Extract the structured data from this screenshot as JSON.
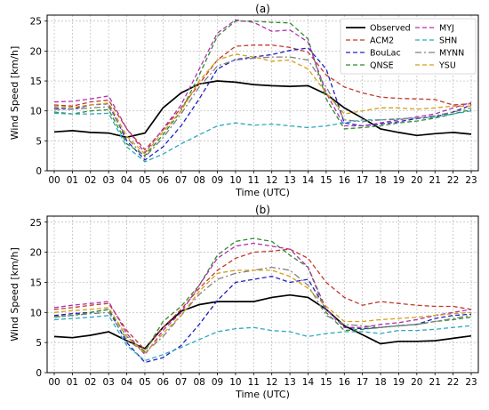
{
  "chart_data": [
    {
      "type": "line",
      "title": "(a)",
      "xlabel": "Time (UTC)",
      "ylabel": "Wind Speed [km/h]",
      "ylim": [
        0,
        26
      ],
      "yticks": [
        0,
        5,
        10,
        15,
        20,
        25
      ],
      "grid": true,
      "legend": "top-right",
      "categories": [
        "00",
        "01",
        "02",
        "03",
        "04",
        "05",
        "06",
        "07",
        "08",
        "09",
        "10",
        "11",
        "12",
        "13",
        "14",
        "15",
        "16",
        "17",
        "18",
        "19",
        "20",
        "21",
        "22",
        "23"
      ],
      "series": [
        {
          "name": "Observed",
          "color": "#000000",
          "dash": "solid",
          "values": [
            6.5,
            6.7,
            6.4,
            6.3,
            5.6,
            6.3,
            10.5,
            13.0,
            14.5,
            15.0,
            14.8,
            14.4,
            14.2,
            14.1,
            14.2,
            12.8,
            10.5,
            8.8,
            7.0,
            6.4,
            5.9,
            6.2,
            6.4,
            6.1
          ]
        },
        {
          "name": "ACM2",
          "color": "#c0392b",
          "dash": "dashed",
          "values": [
            11.0,
            10.8,
            11.5,
            11.8,
            7.0,
            3.5,
            6.8,
            10.5,
            14.5,
            18.5,
            20.8,
            21.0,
            21.0,
            20.6,
            19.8,
            16.0,
            14.0,
            13.0,
            12.3,
            12.1,
            12.0,
            11.9,
            11.0,
            11.2
          ]
        },
        {
          "name": "BouLac",
          "color": "#2020c0",
          "dash": "dashed",
          "values": [
            10.5,
            10.3,
            11.0,
            11.2,
            5.0,
            1.8,
            4.0,
            7.5,
            12.0,
            17.0,
            18.6,
            19.0,
            19.4,
            20.1,
            20.5,
            17.0,
            8.0,
            7.5,
            7.8,
            8.2,
            8.7,
            9.0,
            9.8,
            11.0
          ]
        },
        {
          "name": "QNSE",
          "color": "#2e8b2e",
          "dash": "dashed",
          "values": [
            9.8,
            9.5,
            10.0,
            10.2,
            4.5,
            2.5,
            6.0,
            10.0,
            16.0,
            22.5,
            25.0,
            25.0,
            24.8,
            24.7,
            22.0,
            12.0,
            7.0,
            7.2,
            7.5,
            8.0,
            8.3,
            8.8,
            9.5,
            10.2
          ]
        },
        {
          "name": "MYJ",
          "color": "#b030b0",
          "dash": "dashed",
          "values": [
            11.5,
            11.6,
            12.0,
            12.5,
            7.0,
            3.0,
            7.0,
            11.0,
            17.0,
            23.0,
            25.2,
            24.8,
            23.3,
            23.5,
            21.5,
            13.0,
            7.5,
            7.5,
            8.0,
            8.5,
            9.0,
            9.5,
            10.5,
            11.4
          ]
        },
        {
          "name": "SHN",
          "color": "#2ca8c0",
          "dash": "dashed",
          "values": [
            9.6,
            9.5,
            9.5,
            9.6,
            4.0,
            1.5,
            2.8,
            4.5,
            6.0,
            7.5,
            8.0,
            7.6,
            7.8,
            7.5,
            7.2,
            7.5,
            8.0,
            8.5,
            8.5,
            8.7,
            8.8,
            9.0,
            9.5,
            10.0
          ]
        },
        {
          "name": "MYNN",
          "color": "#808080",
          "dash": "dashdot",
          "values": [
            10.2,
            10.3,
            10.5,
            10.7,
            5.5,
            2.3,
            5.5,
            9.5,
            14.0,
            17.5,
            18.5,
            18.8,
            19.0,
            19.0,
            18.5,
            14.0,
            8.5,
            8.2,
            8.5,
            8.6,
            8.8,
            9.2,
            9.8,
            10.5
          ]
        },
        {
          "name": "YSU",
          "color": "#d4a017",
          "dash": "dashed",
          "values": [
            10.8,
            10.6,
            11.0,
            11.3,
            5.8,
            2.8,
            6.5,
            10.0,
            15.0,
            18.5,
            19.5,
            19.0,
            18.3,
            18.5,
            17.0,
            13.0,
            9.5,
            10.0,
            10.5,
            10.5,
            10.3,
            10.5,
            10.8,
            10.8
          ]
        }
      ]
    },
    {
      "type": "line",
      "title": "(b)",
      "xlabel": "Time (UTC)",
      "ylabel": "Wind Speed [km/h]",
      "ylim": [
        0,
        26
      ],
      "yticks": [
        0,
        5,
        10,
        15,
        20,
        25
      ],
      "grid": true,
      "legend": "none",
      "categories": [
        "00",
        "01",
        "02",
        "03",
        "04",
        "05",
        "06",
        "07",
        "08",
        "09",
        "10",
        "11",
        "12",
        "13",
        "14",
        "15",
        "16",
        "17",
        "18",
        "19",
        "20",
        "21",
        "22",
        "23"
      ],
      "series": [
        {
          "name": "Observed",
          "color": "#000000",
          "dash": "solid",
          "values": [
            6.0,
            5.8,
            6.2,
            6.8,
            5.3,
            4.0,
            7.5,
            10.2,
            11.3,
            11.8,
            11.8,
            11.8,
            12.5,
            12.9,
            12.5,
            10.5,
            7.8,
            6.3,
            4.8,
            5.2,
            5.2,
            5.3,
            5.7,
            6.1
          ]
        },
        {
          "name": "ACM2",
          "color": "#c0392b",
          "dash": "dashed",
          "values": [
            10.5,
            10.8,
            11.2,
            11.5,
            7.0,
            3.8,
            7.5,
            10.5,
            14.0,
            17.0,
            19.0,
            20.0,
            20.2,
            20.5,
            19.0,
            15.0,
            12.5,
            11.2,
            11.8,
            11.5,
            11.2,
            11.0,
            11.0,
            10.5
          ]
        },
        {
          "name": "BouLac",
          "color": "#2020c0",
          "dash": "dashed",
          "values": [
            9.5,
            9.8,
            10.0,
            10.5,
            5.0,
            1.7,
            2.5,
            4.5,
            8.0,
            12.0,
            15.0,
            15.5,
            16.0,
            15.0,
            15.5,
            10.5,
            7.5,
            7.3,
            7.5,
            7.8,
            8.0,
            9.0,
            9.5,
            9.7
          ]
        },
        {
          "name": "QNSE",
          "color": "#2e8b2e",
          "dash": "dashed",
          "values": [
            9.3,
            9.5,
            10.0,
            10.5,
            6.0,
            3.5,
            8.5,
            11.0,
            14.5,
            19.5,
            21.8,
            22.3,
            21.8,
            19.5,
            17.5,
            10.0,
            7.0,
            7.2,
            7.5,
            7.8,
            8.0,
            8.5,
            8.8,
            9.2
          ]
        },
        {
          "name": "MYJ",
          "color": "#b030b0",
          "dash": "dashed",
          "values": [
            10.8,
            11.2,
            11.5,
            11.8,
            6.5,
            3.0,
            7.0,
            10.0,
            14.5,
            19.0,
            21.0,
            21.5,
            21.0,
            20.5,
            17.5,
            10.5,
            7.5,
            7.5,
            8.0,
            8.3,
            8.8,
            9.5,
            10.0,
            10.5
          ]
        },
        {
          "name": "SHN",
          "color": "#2ca8c0",
          "dash": "dashed",
          "values": [
            8.8,
            9.0,
            9.2,
            9.5,
            4.5,
            2.0,
            3.0,
            4.2,
            5.5,
            6.8,
            7.3,
            7.5,
            7.0,
            6.8,
            6.0,
            6.5,
            6.8,
            6.8,
            6.5,
            7.0,
            7.0,
            7.2,
            7.5,
            7.8
          ]
        },
        {
          "name": "MYNN",
          "color": "#808080",
          "dash": "dashdot",
          "values": [
            9.2,
            9.5,
            9.8,
            10.0,
            5.5,
            3.3,
            6.0,
            9.5,
            13.0,
            15.5,
            16.5,
            17.0,
            17.5,
            17.0,
            14.5,
            9.5,
            8.0,
            7.8,
            7.5,
            7.8,
            8.0,
            8.5,
            9.0,
            9.5
          ]
        },
        {
          "name": "YSU",
          "color": "#d4a017",
          "dash": "dashed",
          "values": [
            10.0,
            10.3,
            10.5,
            10.8,
            6.0,
            3.2,
            6.5,
            9.5,
            13.5,
            16.5,
            17.0,
            17.0,
            17.0,
            16.0,
            14.0,
            11.0,
            8.5,
            8.5,
            8.8,
            9.0,
            9.2,
            9.5,
            9.8,
            10.0
          ]
        }
      ]
    }
  ]
}
